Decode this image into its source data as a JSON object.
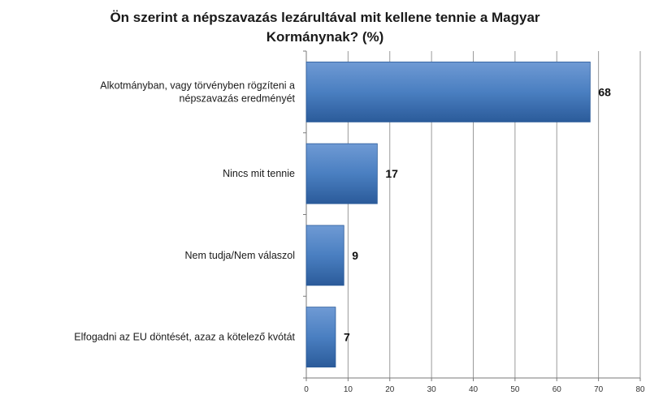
{
  "chart_data": {
    "type": "bar",
    "orientation": "horizontal",
    "title": "Ön szerint a népszavazás lezárultával mit kellene  tennie a Magyar Kormánynak? (%)",
    "categories": [
      "Alkotmányban, vagy törvényben rögzíteni a népszavazás eredményét",
      "Nincs mit tennie",
      "Nem tudja/Nem válaszol",
      "Elfogadni az EU döntését, azaz a kötelező kvótát"
    ],
    "values": [
      68,
      17,
      9,
      7
    ],
    "xlim": [
      0,
      80
    ],
    "xticks": [
      "0",
      "10",
      "20",
      "30",
      "40",
      "50",
      "60",
      "70",
      "80"
    ],
    "grid": true,
    "legend": "none",
    "bar_color": "#4a7fc1",
    "bar_color_dark": "#2b5b9a",
    "bar_color_light": "#6f9ad4"
  }
}
